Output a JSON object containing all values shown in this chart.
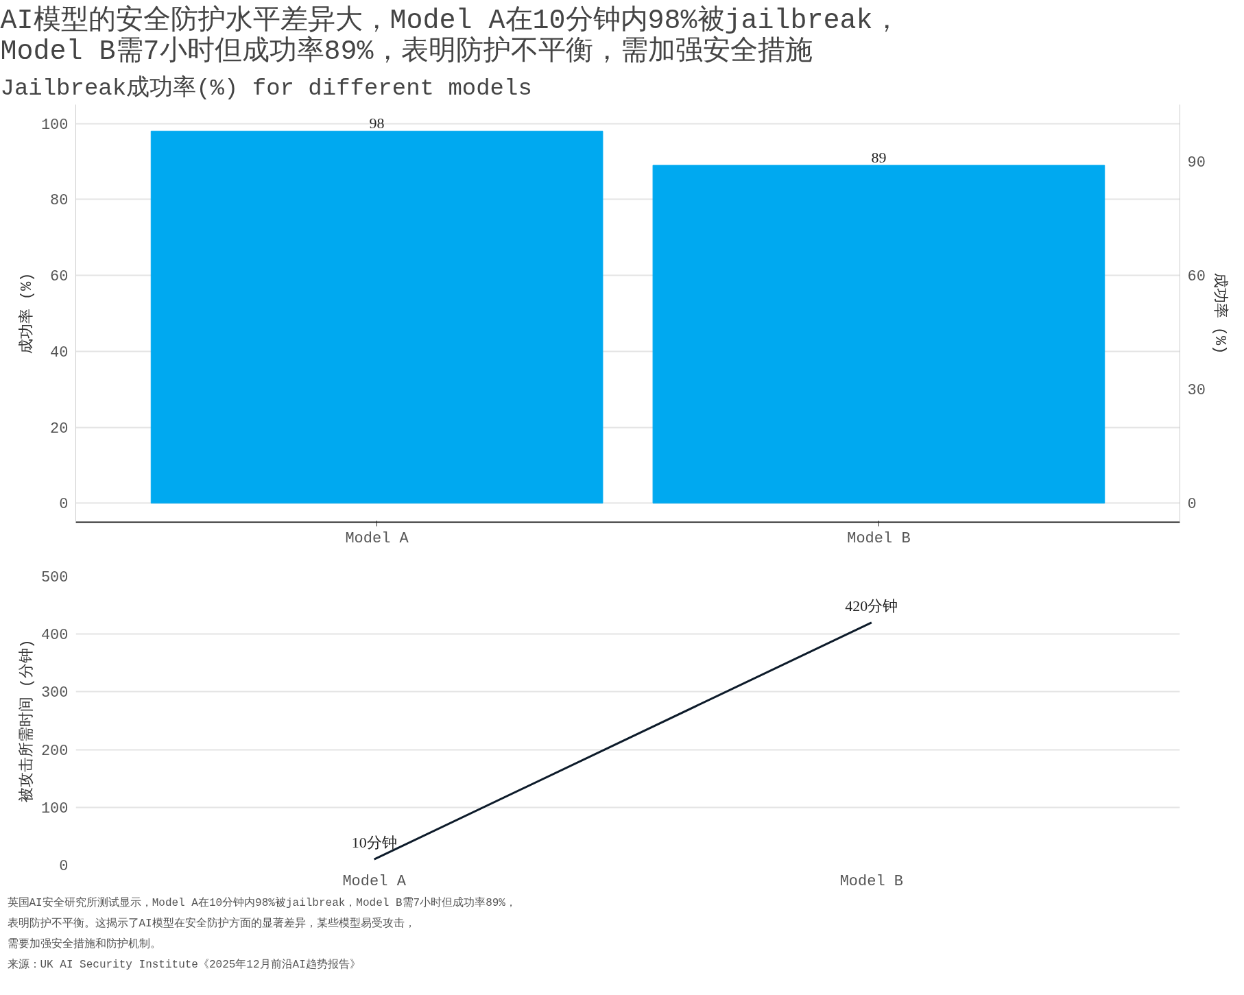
{
  "chart_data": [
    {
      "type": "bar",
      "title": "AI模型的安全防护水平差异大，Model A在10分钟内98%被jailbreak，\nModel B需7小时但成功率89%，表明防护不平衡，需加强安全措施",
      "subtitle": "Jailbreak成功率(%) for different models",
      "categories": [
        "Model A",
        "Model B"
      ],
      "values": [
        98,
        89
      ],
      "color": "#00a9f0",
      "data_labels": true,
      "ylim": [
        -5,
        105
      ],
      "yticks": [
        0,
        20,
        40,
        60,
        80,
        100
      ],
      "ylabel": "成功率 (%)",
      "y2lim": [
        -5,
        105
      ],
      "y2ticks": [
        0,
        30,
        60,
        90
      ],
      "y2label": "成功率 (%)",
      "grid": "y"
    },
    {
      "type": "line",
      "categories": [
        "Model A",
        "Model B"
      ],
      "values": [
        10,
        420
      ],
      "color": "#0d1b2a",
      "value_labels": [
        "10分钟",
        "420分钟"
      ],
      "ylim": [
        0,
        500
      ],
      "yticks": [
        0,
        100,
        200,
        300,
        400,
        500
      ],
      "ylabel": "被攻击所需时间 (分钟)",
      "grid": "y",
      "annotations": [
        "英国AI安全研究所测试显示，Model A在10分钟内98%被jailbreak，Model B需7小时但成功率89%，",
        "表明防护不平衡。这揭示了AI模型在安全防护方面的显著差异，某些模型易受攻击，",
        "需要加强安全措施和防护机制。",
        "来源：UK AI Security Institute《2025年12月前沿AI趋势报告》"
      ]
    }
  ]
}
